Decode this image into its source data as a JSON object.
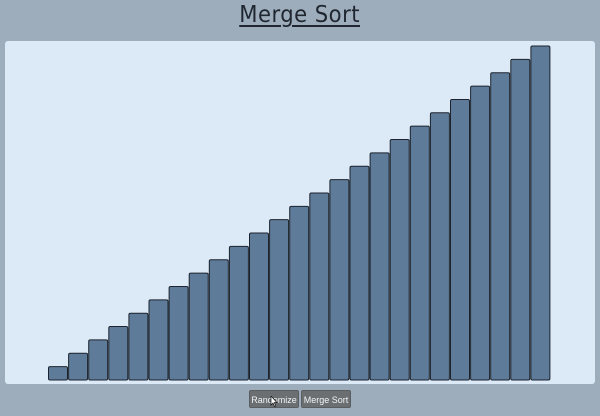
{
  "header": {
    "title": "Merge Sort"
  },
  "controls": {
    "randomize_label": "Randomize",
    "merge_sort_label": "Merge Sort"
  },
  "bars": {
    "values": [
      1,
      2,
      3,
      4,
      5,
      6,
      7,
      8,
      9,
      10,
      11,
      12,
      13,
      14,
      15,
      16,
      17,
      18,
      19,
      20,
      21,
      22,
      23,
      24,
      25
    ],
    "fill_color": "#5e7b9a",
    "border_color": "#1c232c"
  },
  "colors": {
    "background": "#9eadbc",
    "panel": "#dceaf8",
    "button": "#6b6f72"
  }
}
